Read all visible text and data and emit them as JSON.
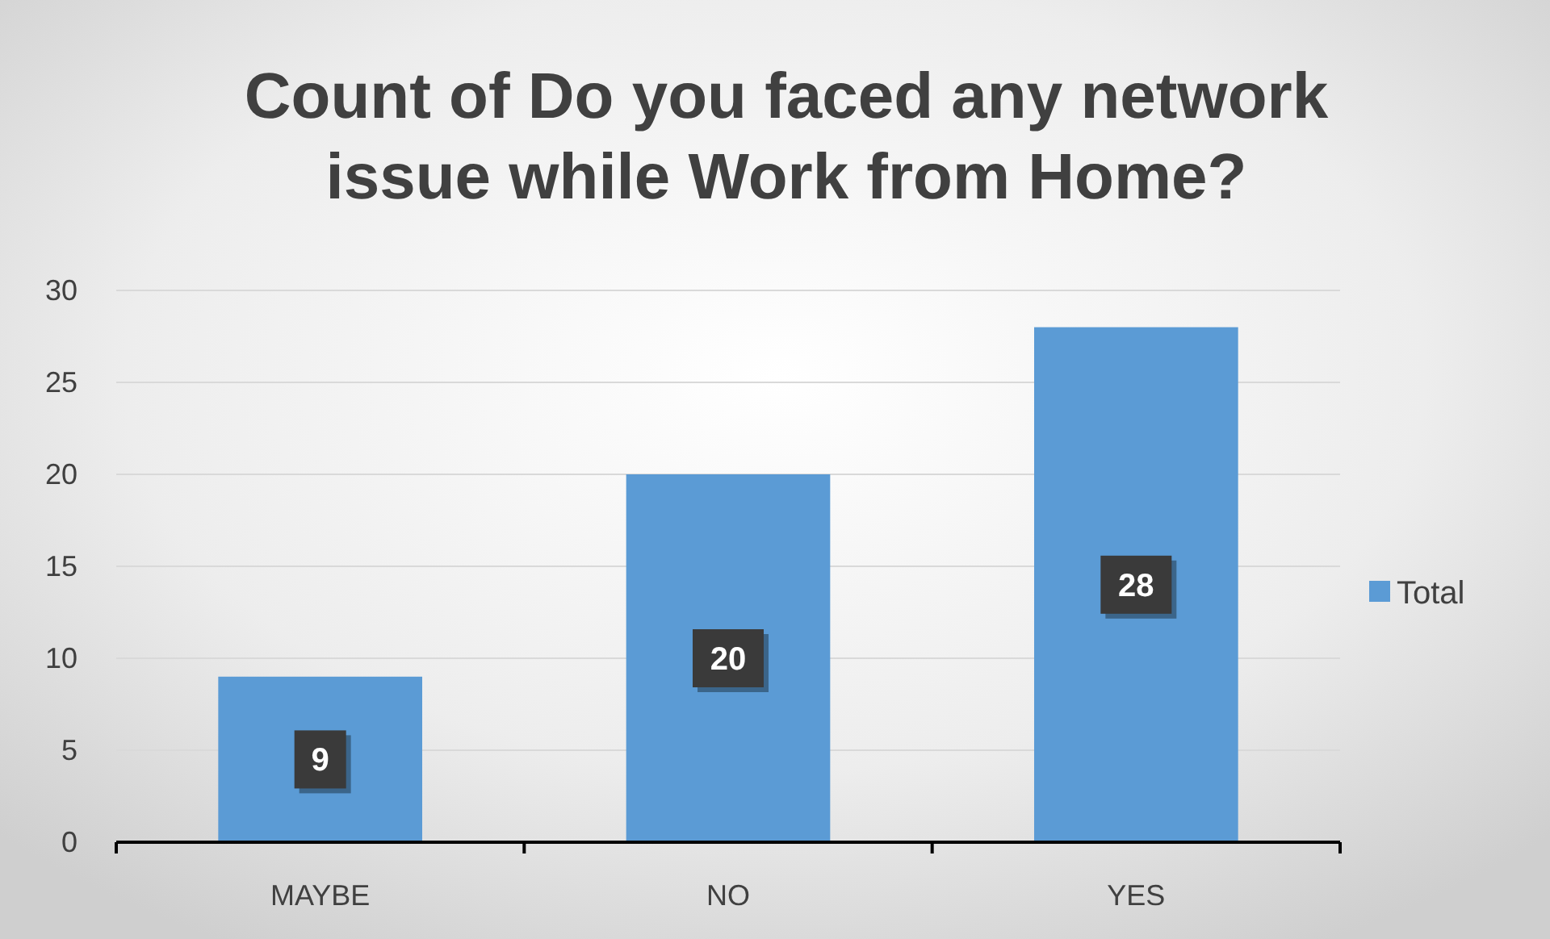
{
  "chart_data": {
    "type": "bar",
    "title": "Count of Do you faced any network issue while Work from Home?",
    "categories": [
      "MAYBE",
      "NO",
      "YES"
    ],
    "series": [
      {
        "name": "Total",
        "color": "#5b9bd5",
        "values": [
          9,
          20,
          28
        ]
      }
    ],
    "ylim": [
      0,
      30
    ],
    "yticks": [
      0,
      5,
      10,
      15,
      20,
      25,
      30
    ],
    "grid": "y",
    "legend": "right",
    "data_labels": true
  }
}
